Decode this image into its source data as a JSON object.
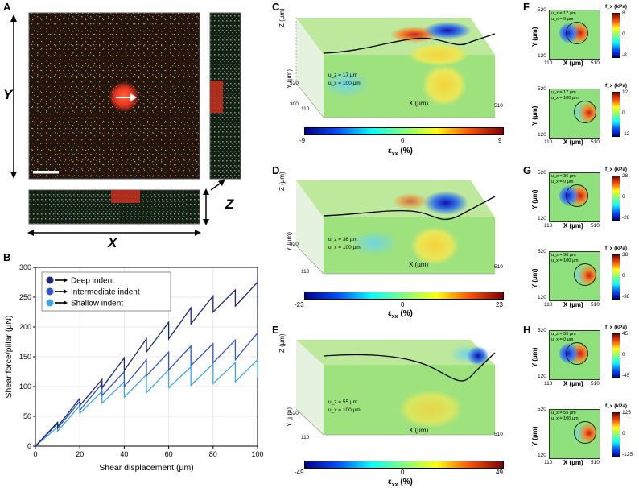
{
  "panels": {
    "A": "A",
    "B": "B",
    "C": "C",
    "D": "D",
    "E": "E",
    "F": "F",
    "G": "G",
    "H": "H"
  },
  "panelA": {
    "y_axis": "Y",
    "x_axis": "X",
    "z_axis": "Z"
  },
  "panelB": {
    "legend": [
      "Deep indent",
      "Intermediate indent",
      "Shallow indent"
    ],
    "colors": [
      "#1b2a78",
      "#2f55d4",
      "#3aa7e0"
    ]
  },
  "chart_data": {
    "type": "line",
    "xlabel": "Shear displacement (µm)",
    "ylabel": "Shear force/pillar (µN)",
    "xlim": [
      0,
      100
    ],
    "ylim": [
      0,
      300
    ],
    "xticks": [
      "0",
      "20",
      "40",
      "60",
      "80",
      "100"
    ],
    "yticks": [
      "0",
      "50",
      "100",
      "150",
      "200",
      "250",
      "300"
    ],
    "series": [
      {
        "name": "Deep indent",
        "x": [
          0,
          10,
          10,
          20,
          20,
          30,
          30,
          40,
          40,
          50,
          50,
          60,
          60,
          70,
          70,
          80,
          80,
          90,
          90,
          100,
          100
        ],
        "y": [
          0,
          40,
          33,
          80,
          68,
          112,
          98,
          148,
          127,
          180,
          158,
          208,
          180,
          232,
          205,
          252,
          225,
          262,
          235,
          275,
          235
        ]
      },
      {
        "name": "Intermediate indent",
        "x": [
          0,
          10,
          10,
          20,
          20,
          30,
          30,
          40,
          40,
          50,
          50,
          60,
          60,
          70,
          70,
          80,
          80,
          90,
          90,
          100,
          100
        ],
        "y": [
          0,
          38,
          30,
          75,
          60,
          105,
          85,
          125,
          100,
          145,
          118,
          158,
          128,
          168,
          135,
          172,
          140,
          178,
          145,
          190,
          160
        ]
      },
      {
        "name": "Shallow indent",
        "x": [
          0,
          10,
          10,
          20,
          20,
          30,
          30,
          40,
          40,
          50,
          50,
          60,
          60,
          70,
          70,
          80,
          80,
          90,
          90,
          100,
          100
        ],
        "y": [
          0,
          32,
          25,
          68,
          55,
          92,
          72,
          108,
          82,
          120,
          90,
          128,
          98,
          133,
          102,
          138,
          105,
          140,
          108,
          145,
          115
        ]
      }
    ]
  },
  "panelC": {
    "uz": "u_z = 17 µm",
    "ux": "u_x = 100 µm",
    "cbar_min": "-9",
    "cbar_mid": "0",
    "cbar_max": "9"
  },
  "panelD": {
    "uz": "u_z = 36 µm",
    "ux": "u_x = 100 µm",
    "cbar_min": "-23",
    "cbar_mid": "0",
    "cbar_max": "23"
  },
  "panelE": {
    "uz": "u_z = 55 µm",
    "ux": "u_x = 100 µm",
    "cbar_min": "-49",
    "cbar_mid": "0",
    "cbar_max": "49"
  },
  "axes3d": {
    "z": "Z (µm)",
    "y": "Y (µm)",
    "x": "X (µm)",
    "y520": "520",
    "y300": "300",
    "x110": "110",
    "x510": "510"
  },
  "exx_label": "ε",
  "exx_sub": "xx",
  "exx_unit": " (%)",
  "panelF": [
    {
      "uz": "u_z = 17 µm",
      "ux": "u_x = 0 µm",
      "max": "8",
      "mid": "0",
      "min": "-8"
    },
    {
      "uz": "u_z = 17 µm",
      "ux": "u_x = 100 µm",
      "max": "12",
      "mid": "0",
      "min": "-12"
    }
  ],
  "panelG": [
    {
      "uz": "u_z = 36 µm",
      "ux": "u_x = 0 µm",
      "max": "28",
      "mid": "0",
      "min": "-28"
    },
    {
      "uz": "u_z = 36 µm",
      "ux": "u_x = 100 µm",
      "max": "38",
      "mid": "0",
      "min": "-38"
    }
  ],
  "panelH": [
    {
      "uz": "u_z = 55 µm",
      "ux": "u_x = 0 µm",
      "max": "45",
      "mid": "0",
      "min": "-45"
    },
    {
      "uz": "u_z = 55 µm",
      "ux": "u_x = 100 µm",
      "max": "125",
      "mid": "0",
      "min": "-125"
    }
  ],
  "inset_axes": {
    "y": "Y (µm)",
    "x": "X (µm)",
    "y520": "520",
    "y120": "120",
    "x110": "110",
    "x510": "510",
    "fx": "f_x (kPa)"
  }
}
